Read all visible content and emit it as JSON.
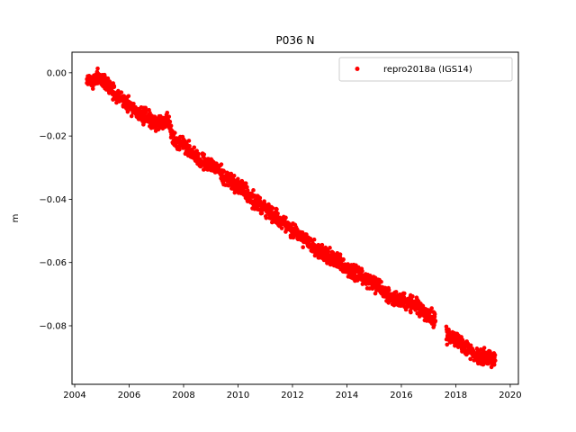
{
  "chart_data": {
    "type": "scatter",
    "title": "P036 N",
    "xlabel": "",
    "ylabel": "m",
    "xlim": [
      2003.9,
      2020.3
    ],
    "ylim": [
      -0.0985,
      0.0065
    ],
    "xticks": [
      2004,
      2006,
      2008,
      2010,
      2012,
      2014,
      2016,
      2018,
      2020
    ],
    "yticks": [
      0.0,
      -0.02,
      -0.04,
      -0.06,
      -0.08
    ],
    "ytick_labels": [
      "0.00",
      "−0.02",
      "−0.04",
      "−0.06",
      "−0.08"
    ],
    "grid": false,
    "legend_position": "top-right",
    "series": [
      {
        "name": "repro2018a (IGS14)",
        "color": "#ff0000",
        "marker": "circle",
        "points": [
          [
            2004.45,
            -0.002
          ],
          [
            2004.6,
            -0.003
          ],
          [
            2004.8,
            -0.001
          ],
          [
            2005.0,
            -0.002
          ],
          [
            2005.2,
            -0.004
          ],
          [
            2005.4,
            -0.006
          ],
          [
            2005.6,
            -0.008
          ],
          [
            2005.8,
            -0.009
          ],
          [
            2006.0,
            -0.01
          ],
          [
            2006.2,
            -0.012
          ],
          [
            2006.4,
            -0.013
          ],
          [
            2006.6,
            -0.014
          ],
          [
            2006.8,
            -0.015
          ],
          [
            2007.0,
            -0.016
          ],
          [
            2007.2,
            -0.016
          ],
          [
            2007.4,
            -0.015
          ],
          [
            2007.7,
            -0.022
          ],
          [
            2008.0,
            -0.023
          ],
          [
            2008.3,
            -0.025
          ],
          [
            2008.6,
            -0.028
          ],
          [
            2008.9,
            -0.029
          ],
          [
            2009.2,
            -0.03
          ],
          [
            2009.5,
            -0.033
          ],
          [
            2009.8,
            -0.035
          ],
          [
            2010.1,
            -0.036
          ],
          [
            2010.4,
            -0.039
          ],
          [
            2010.7,
            -0.041
          ],
          [
            2011.0,
            -0.043
          ],
          [
            2011.3,
            -0.045
          ],
          [
            2011.6,
            -0.047
          ],
          [
            2011.9,
            -0.049
          ],
          [
            2012.2,
            -0.051
          ],
          [
            2012.5,
            -0.053
          ],
          [
            2012.8,
            -0.055
          ],
          [
            2013.1,
            -0.057
          ],
          [
            2013.4,
            -0.058
          ],
          [
            2013.7,
            -0.06
          ],
          [
            2014.0,
            -0.062
          ],
          [
            2014.3,
            -0.063
          ],
          [
            2014.6,
            -0.065
          ],
          [
            2014.9,
            -0.066
          ],
          [
            2015.2,
            -0.068
          ],
          [
            2015.5,
            -0.07
          ],
          [
            2015.8,
            -0.072
          ],
          [
            2016.1,
            -0.072
          ],
          [
            2016.4,
            -0.073
          ],
          [
            2016.7,
            -0.075
          ],
          [
            2017.0,
            -0.077
          ],
          [
            2017.2,
            -0.078
          ],
          [
            2017.7,
            -0.083
          ],
          [
            2017.9,
            -0.084
          ],
          [
            2018.1,
            -0.085
          ],
          [
            2018.3,
            -0.087
          ],
          [
            2018.5,
            -0.088
          ],
          [
            2018.7,
            -0.089
          ],
          [
            2018.9,
            -0.09
          ],
          [
            2019.1,
            -0.09
          ],
          [
            2019.3,
            -0.091
          ],
          [
            2019.45,
            -0.091
          ]
        ]
      }
    ]
  }
}
